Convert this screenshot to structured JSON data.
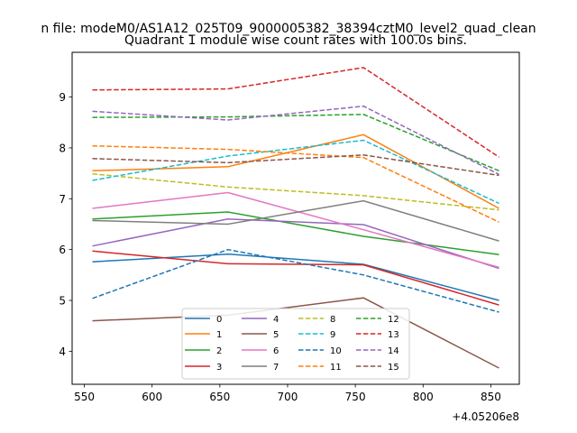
{
  "chart_data": {
    "type": "line",
    "suptitle": "n file: modeM0/AS1A12_025T09_9000005382_38394cztM0_level2_quad_clean",
    "title": "Quadrant 1 module wise count rates with 100.0s bins.",
    "xlabel": "",
    "ylabel": "",
    "x_offset_label": "+4.05206e8",
    "x": [
      556,
      656,
      756,
      856
    ],
    "xlim": [
      541,
      871
    ],
    "ylim": [
      3.35,
      9.88
    ],
    "xticks": [
      550,
      600,
      650,
      700,
      750,
      800,
      850
    ],
    "yticks": [
      4,
      5,
      6,
      7,
      8,
      9
    ],
    "grid": false,
    "legend_position": "lower-center",
    "series": [
      {
        "name": "0",
        "color": "#1f77b4",
        "dash": "solid",
        "values": [
          5.76,
          5.91,
          5.71,
          5.0
        ]
      },
      {
        "name": "1",
        "color": "#ff7f0e",
        "dash": "solid",
        "values": [
          7.55,
          7.63,
          8.26,
          6.81
        ]
      },
      {
        "name": "2",
        "color": "#2ca02c",
        "dash": "solid",
        "values": [
          6.6,
          6.74,
          6.26,
          5.9
        ]
      },
      {
        "name": "3",
        "color": "#d62728",
        "dash": "solid",
        "values": [
          5.97,
          5.72,
          5.7,
          4.91
        ]
      },
      {
        "name": "4",
        "color": "#9467bd",
        "dash": "solid",
        "values": [
          6.07,
          6.6,
          6.49,
          5.63
        ]
      },
      {
        "name": "5",
        "color": "#8c564b",
        "dash": "solid",
        "values": [
          4.6,
          4.71,
          5.05,
          3.67
        ]
      },
      {
        "name": "6",
        "color": "#e377c2",
        "dash": "solid",
        "values": [
          6.81,
          7.12,
          6.39,
          5.65
        ]
      },
      {
        "name": "7",
        "color": "#7f7f7f",
        "dash": "solid",
        "values": [
          6.57,
          6.5,
          6.96,
          6.17
        ]
      },
      {
        "name": "8",
        "color": "#bcbd22",
        "dash": "dashed",
        "values": [
          7.49,
          7.23,
          7.06,
          6.78
        ]
      },
      {
        "name": "9",
        "color": "#17becf",
        "dash": "dashed",
        "values": [
          7.36,
          7.84,
          8.15,
          6.91
        ]
      },
      {
        "name": "10",
        "color": "#1f77b4",
        "dash": "dashed",
        "values": [
          5.04,
          6.0,
          5.5,
          4.77
        ]
      },
      {
        "name": "11",
        "color": "#ff7f0e",
        "dash": "dashed",
        "values": [
          8.04,
          7.97,
          7.81,
          6.54
        ]
      },
      {
        "name": "12",
        "color": "#2ca02c",
        "dash": "dashed",
        "values": [
          8.6,
          8.61,
          8.66,
          7.55
        ]
      },
      {
        "name": "13",
        "color": "#d62728",
        "dash": "dashed",
        "values": [
          9.14,
          9.16,
          9.58,
          7.82
        ]
      },
      {
        "name": "14",
        "color": "#9467bd",
        "dash": "dashed",
        "values": [
          8.72,
          8.55,
          8.82,
          7.48
        ]
      },
      {
        "name": "15",
        "color": "#8c564b",
        "dash": "dashed",
        "values": [
          7.79,
          7.71,
          7.86,
          7.46
        ]
      }
    ]
  }
}
